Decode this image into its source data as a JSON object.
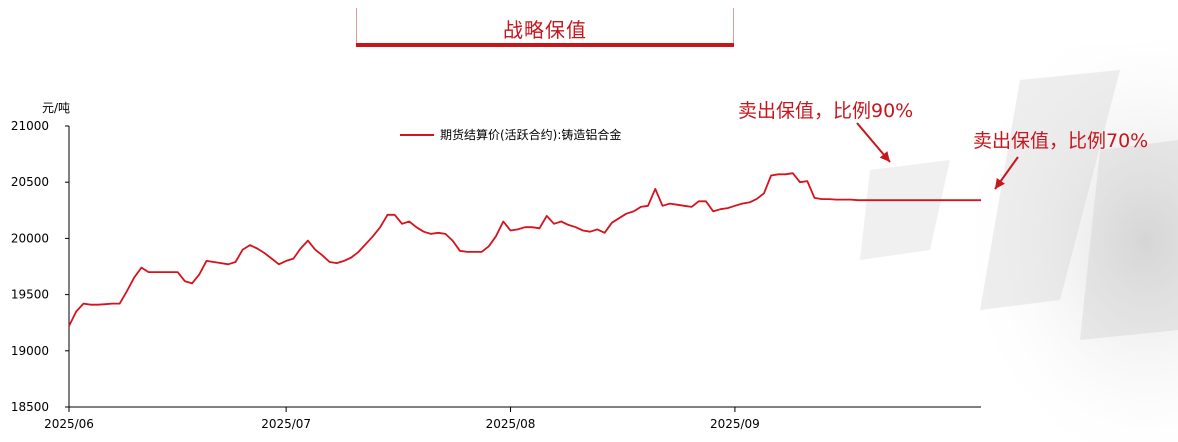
{
  "header": {
    "title": "战略保值"
  },
  "colors": {
    "accent": "#c8161d",
    "line": "#d6121c",
    "axis": "#000000"
  },
  "chart_data": {
    "type": "line",
    "ylabel": "元/吨",
    "ylim": [
      18500,
      21000
    ],
    "yticks": [
      18500,
      19000,
      19500,
      20000,
      20500,
      21000
    ],
    "xticks": [
      {
        "label": "2025/06",
        "x": 0
      },
      {
        "label": "2025/07",
        "x": 30
      },
      {
        "label": "2025/08",
        "x": 61
      },
      {
        "label": "2025/09",
        "x": 92
      }
    ],
    "xlim": [
      0,
      126
    ],
    "legend": "top",
    "series": [
      {
        "name": "期货结算价(活跃合约):铸造铝合金",
        "x": [
          0,
          1,
          2,
          3,
          4,
          5,
          6,
          7,
          8,
          9,
          10,
          11,
          12,
          13,
          14,
          15,
          16,
          17,
          18,
          19,
          20,
          21,
          22,
          23,
          24,
          25,
          26,
          27,
          28,
          29,
          30,
          31,
          32,
          33,
          34,
          35,
          36,
          37,
          38,
          39,
          40,
          41,
          42,
          43,
          44,
          45,
          46,
          47,
          48,
          49,
          50,
          51,
          52,
          53,
          54,
          55,
          56,
          57,
          58,
          59,
          60,
          61,
          62,
          63,
          64,
          65,
          66,
          67,
          68,
          69,
          70,
          71,
          72,
          73,
          74,
          75,
          76,
          77,
          78,
          79,
          80,
          81,
          82,
          83,
          84,
          85,
          86,
          87,
          88,
          89,
          90,
          91,
          92,
          93,
          94,
          95,
          96,
          97,
          98,
          99,
          100,
          101,
          102,
          103,
          104,
          105,
          106,
          107,
          108,
          109,
          110,
          111,
          112,
          113,
          114,
          115,
          116,
          117,
          118,
          119,
          120,
          121,
          122,
          123,
          124,
          125,
          126
        ],
        "values": [
          19220,
          19350,
          19420,
          19410,
          19410,
          19415,
          19420,
          19420,
          19530,
          19650,
          19740,
          19700,
          19700,
          19700,
          19700,
          19700,
          19620,
          19600,
          19680,
          19800,
          19790,
          19780,
          19770,
          19790,
          19900,
          19940,
          19910,
          19870,
          19820,
          19770,
          19800,
          19820,
          19910,
          19980,
          19900,
          19850,
          19790,
          19780,
          19800,
          19830,
          19880,
          19950,
          20020,
          20100,
          20210,
          20210,
          20130,
          20150,
          20100,
          20060,
          20040,
          20050,
          20040,
          19980,
          19890,
          19880,
          19880,
          19880,
          19930,
          20020,
          20150,
          20070,
          20080,
          20100,
          20100,
          20090,
          20200,
          20130,
          20150,
          20120,
          20100,
          20070,
          20060,
          20080,
          20050,
          20140,
          20180,
          20220,
          20240,
          20280,
          20290,
          20440,
          20290,
          20310,
          20300,
          20290,
          20280,
          20330,
          20330,
          20240,
          20260,
          20270,
          20290,
          20310,
          20320,
          20350,
          20400,
          20560,
          20570,
          20570,
          20580,
          20500,
          20510,
          20360,
          20350,
          20350,
          20345,
          20345,
          20345,
          20340,
          20340,
          20340,
          20340,
          20340,
          20340,
          20340,
          20340,
          20340,
          20340,
          20340,
          20340,
          20340,
          20340,
          20340,
          20340,
          20340,
          20340
        ]
      }
    ],
    "annotations": [
      {
        "text": "卖出保值，比例90%"
      },
      {
        "text": "卖出保值，比例70%"
      }
    ]
  }
}
